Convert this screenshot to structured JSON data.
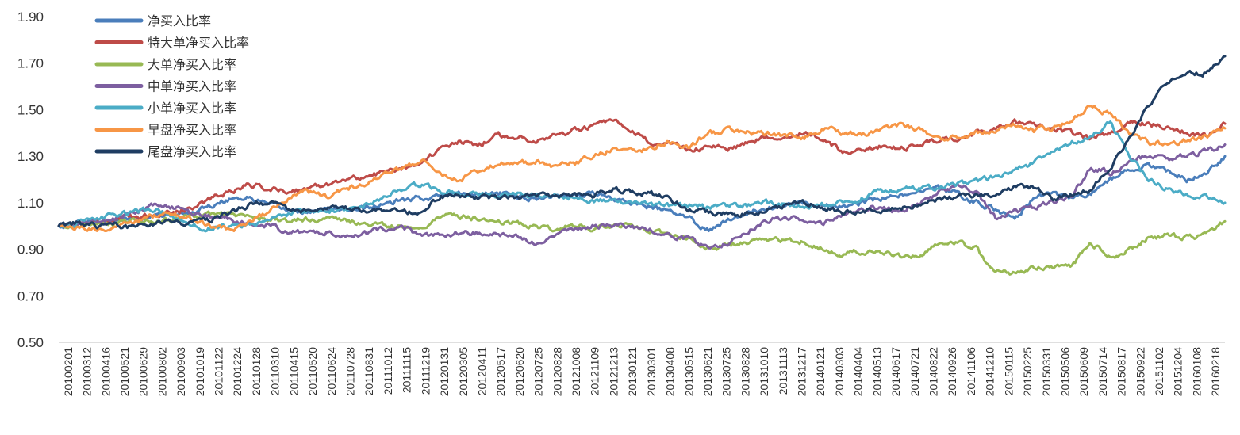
{
  "chart_data": {
    "type": "line",
    "title": "",
    "xlabel": "",
    "ylabel": "",
    "ylim": [
      0.5,
      1.9
    ],
    "yticks": [
      "0.50",
      "0.70",
      "0.90",
      "1.10",
      "1.30",
      "1.50",
      "1.70",
      "1.90"
    ],
    "grid": false,
    "legend_position": "top-left",
    "x_tick_labels": [
      "20100201",
      "20100312",
      "20100416",
      "20100521",
      "20100629",
      "20100802",
      "20100903",
      "20101019",
      "20101122",
      "20101224",
      "20110128",
      "20110310",
      "20110415",
      "20110520",
      "20110624",
      "20110728",
      "20110831",
      "20111012",
      "20111115",
      "20111219",
      "20120131",
      "20120305",
      "20120411",
      "20120517",
      "20120620",
      "20120725",
      "20120828",
      "20121008",
      "20121109",
      "20121213",
      "20130121",
      "20130301",
      "20130408",
      "20130515",
      "20130621",
      "20130725",
      "20130828",
      "20131010",
      "20131113",
      "20131217",
      "20140121",
      "20140303",
      "20140404",
      "20140513",
      "20140617",
      "20140721",
      "20140822",
      "20140926",
      "20141106",
      "20141210",
      "20150115",
      "20150225",
      "20150331",
      "20150506",
      "20150609",
      "20150714",
      "20150817",
      "20150922",
      "20151102",
      "20151204",
      "20160108",
      "20160218"
    ],
    "series": [
      {
        "name": "净买入比率",
        "color": "#4A7EBB",
        "values": [
          1.0,
          1.01,
          1.02,
          1.03,
          1.03,
          1.04,
          1.05,
          1.06,
          1.09,
          1.12,
          1.12,
          1.09,
          1.07,
          1.06,
          1.07,
          1.07,
          1.08,
          1.09,
          1.11,
          1.12,
          1.13,
          1.14,
          1.14,
          1.14,
          1.13,
          1.12,
          1.13,
          1.14,
          1.14,
          1.12,
          1.1,
          1.08,
          1.06,
          1.03,
          0.98,
          1.03,
          1.06,
          1.08,
          1.09,
          1.1,
          1.09,
          1.08,
          1.1,
          1.12,
          1.13,
          1.15,
          1.16,
          1.14,
          1.1,
          1.07,
          1.03,
          1.12,
          1.14,
          1.12,
          1.14,
          1.2,
          1.24,
          1.26,
          1.23,
          1.2,
          1.22,
          1.3
        ]
      },
      {
        "name": "特大单净买入比率",
        "color": "#BE4B48",
        "values": [
          1.0,
          1.01,
          1.02,
          1.03,
          1.04,
          1.05,
          1.06,
          1.08,
          1.12,
          1.15,
          1.18,
          1.16,
          1.15,
          1.16,
          1.18,
          1.2,
          1.21,
          1.23,
          1.25,
          1.28,
          1.33,
          1.36,
          1.35,
          1.39,
          1.38,
          1.37,
          1.39,
          1.41,
          1.43,
          1.45,
          1.4,
          1.36,
          1.35,
          1.33,
          1.34,
          1.33,
          1.36,
          1.38,
          1.39,
          1.4,
          1.37,
          1.32,
          1.33,
          1.34,
          1.33,
          1.35,
          1.37,
          1.38,
          1.4,
          1.42,
          1.45,
          1.43,
          1.41,
          1.4,
          1.38,
          1.4,
          1.45,
          1.44,
          1.42,
          1.4,
          1.39,
          1.44
        ]
      },
      {
        "name": "大单净买入比率",
        "color": "#98B954",
        "values": [
          1.0,
          1.0,
          1.01,
          1.01,
          1.02,
          1.02,
          1.03,
          1.04,
          1.05,
          1.05,
          1.04,
          1.03,
          1.02,
          1.03,
          1.03,
          1.02,
          1.01,
          1.0,
          1.0,
          0.99,
          1.05,
          1.04,
          1.03,
          1.02,
          1.01,
          1.0,
          0.99,
          1.0,
          0.99,
          1.0,
          1.0,
          0.98,
          0.96,
          0.94,
          0.9,
          0.92,
          0.93,
          0.94,
          0.94,
          0.93,
          0.9,
          0.88,
          0.89,
          0.88,
          0.87,
          0.88,
          0.92,
          0.93,
          0.9,
          0.8,
          0.8,
          0.82,
          0.82,
          0.83,
          0.93,
          0.86,
          0.9,
          0.95,
          0.96,
          0.95,
          0.96,
          1.02
        ]
      },
      {
        "name": "中单净买入比率",
        "color": "#7D5FA0",
        "values": [
          1.0,
          1.01,
          1.02,
          1.03,
          1.06,
          1.09,
          1.08,
          1.05,
          1.04,
          1.03,
          1.01,
          1.0,
          0.98,
          0.97,
          0.97,
          0.96,
          0.97,
          0.99,
          1.0,
          0.95,
          0.96,
          0.97,
          0.97,
          0.96,
          0.95,
          0.93,
          0.97,
          0.98,
          1.0,
          1.0,
          1.0,
          0.98,
          0.96,
          0.94,
          0.91,
          0.93,
          0.98,
          1.02,
          1.04,
          1.02,
          1.01,
          1.04,
          1.07,
          1.08,
          1.06,
          1.1,
          1.14,
          1.18,
          1.14,
          1.03,
          1.06,
          1.08,
          1.1,
          1.13,
          1.25,
          1.23,
          1.28,
          1.3,
          1.29,
          1.3,
          1.32,
          1.35
        ]
      },
      {
        "name": "小单净买入比率",
        "color": "#4BACC6",
        "values": [
          1.0,
          1.01,
          1.03,
          1.05,
          1.06,
          1.07,
          1.04,
          1.0,
          0.99,
          1.0,
          1.01,
          1.02,
          1.05,
          1.06,
          1.07,
          1.07,
          1.09,
          1.12,
          1.16,
          1.18,
          1.15,
          1.14,
          1.14,
          1.13,
          1.14,
          1.13,
          1.13,
          1.12,
          1.11,
          1.11,
          1.1,
          1.09,
          1.09,
          1.09,
          1.08,
          1.09,
          1.09,
          1.1,
          1.09,
          1.08,
          1.09,
          1.1,
          1.12,
          1.15,
          1.16,
          1.16,
          1.17,
          1.18,
          1.19,
          1.21,
          1.24,
          1.27,
          1.31,
          1.36,
          1.38,
          1.45,
          1.3,
          1.2,
          1.16,
          1.13,
          1.12,
          1.1
        ]
      },
      {
        "name": "早盘净买入比率",
        "color": "#F79646",
        "values": [
          1.0,
          0.99,
          0.98,
          1.0,
          1.02,
          1.04,
          1.05,
          1.03,
          1.0,
          0.98,
          1.02,
          1.06,
          1.12,
          1.15,
          1.12,
          1.16,
          1.18,
          1.22,
          1.25,
          1.28,
          1.22,
          1.2,
          1.24,
          1.27,
          1.27,
          1.28,
          1.26,
          1.27,
          1.3,
          1.33,
          1.32,
          1.34,
          1.36,
          1.34,
          1.4,
          1.41,
          1.4,
          1.4,
          1.39,
          1.38,
          1.42,
          1.4,
          1.39,
          1.41,
          1.43,
          1.42,
          1.38,
          1.38,
          1.4,
          1.41,
          1.44,
          1.41,
          1.42,
          1.45,
          1.52,
          1.48,
          1.4,
          1.36,
          1.35,
          1.37,
          1.38,
          1.42
        ]
      },
      {
        "name": "尾盘净买入比率",
        "color": "#1F3D62",
        "values": [
          1.0,
          1.01,
          1.0,
          1.01,
          0.99,
          1.01,
          1.02,
          1.01,
          1.03,
          1.06,
          1.09,
          1.1,
          1.07,
          1.06,
          1.07,
          1.08,
          1.07,
          1.07,
          1.06,
          1.05,
          1.13,
          1.13,
          1.12,
          1.12,
          1.12,
          1.13,
          1.13,
          1.14,
          1.13,
          1.16,
          1.14,
          1.14,
          1.11,
          1.07,
          1.06,
          1.05,
          1.05,
          1.07,
          1.09,
          1.1,
          1.08,
          1.06,
          1.06,
          1.07,
          1.08,
          1.09,
          1.11,
          1.13,
          1.13,
          1.12,
          1.17,
          1.16,
          1.12,
          1.14,
          1.15,
          1.25,
          1.37,
          1.52,
          1.62,
          1.65,
          1.66,
          1.73
        ]
      }
    ]
  }
}
